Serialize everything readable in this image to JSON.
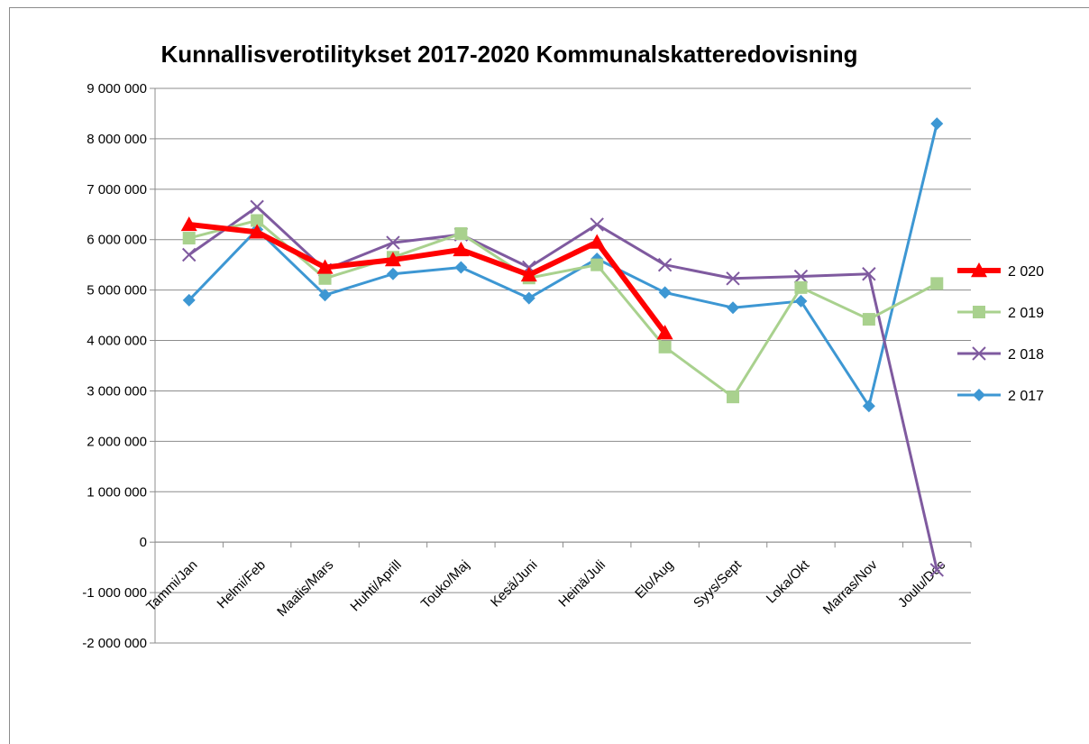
{
  "chart_data": {
    "type": "line",
    "title": "Kunnallisverotilitykset 2017-2020 Kommunalskatteredovisning",
    "xlabel": "",
    "ylabel": "",
    "categories": [
      "Tammi/Jan",
      "Helmi/Feb",
      "Maalis/Mars",
      "Huhti/Aprill",
      "Touko/Maj",
      "Kesä/Juni",
      "Heinä/Juli",
      "Elo/Aug",
      "Syys/Sept",
      "Loka/Okt",
      "Marras/Nov",
      "Joulu/Dec"
    ],
    "ylim": [
      -2000000,
      9000000
    ],
    "yticks": [
      -2000000,
      -1000000,
      0,
      1000000,
      2000000,
      3000000,
      4000000,
      5000000,
      6000000,
      7000000,
      8000000,
      9000000
    ],
    "ytick_labels": [
      "-2 000 000",
      "-1 000 000",
      "0",
      "1 000 000",
      "2 000 000",
      "3 000 000",
      "4 000 000",
      "5 000 000",
      "6 000 000",
      "7 000 000",
      "8 000 000",
      "9 000 000"
    ],
    "grid": "horizontal",
    "legend_position": "right",
    "series": [
      {
        "name": "2 020",
        "color": "#ff0000",
        "marker": "triangle",
        "width": 6,
        "values": [
          6300000,
          6150000,
          5450000,
          5600000,
          5800000,
          5300000,
          5950000,
          4150000,
          null,
          null,
          null,
          null
        ]
      },
      {
        "name": "2 019",
        "color": "#a9d18e",
        "marker": "square",
        "width": 3,
        "values": [
          6030000,
          6380000,
          5230000,
          5650000,
          6120000,
          5240000,
          5500000,
          3870000,
          2880000,
          5050000,
          4420000,
          5130000
        ]
      },
      {
        "name": "2 018",
        "color": "#7f5a9f",
        "marker": "x",
        "width": 3,
        "values": [
          5700000,
          6650000,
          5400000,
          5940000,
          6100000,
          5450000,
          6300000,
          5500000,
          5230000,
          5270000,
          5320000,
          -550000
        ]
      },
      {
        "name": "2 017",
        "color": "#3d97d3",
        "marker": "diamond",
        "width": 3,
        "values": [
          4800000,
          6200000,
          4900000,
          5320000,
          5450000,
          4840000,
          5620000,
          4950000,
          4650000,
          4780000,
          2700000,
          8300000
        ]
      }
    ]
  }
}
